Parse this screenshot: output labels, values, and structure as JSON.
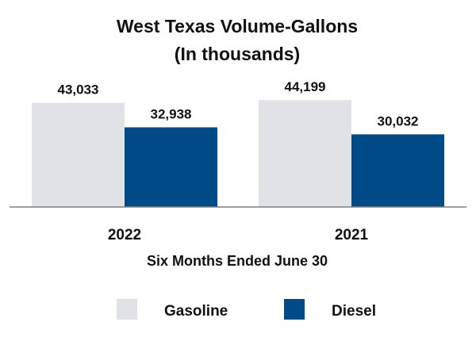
{
  "chart_data": {
    "type": "bar",
    "title": "West Texas Volume-Gallons",
    "subtitle": "(In thousands)",
    "xlabel": "Six Months Ended June 30",
    "ylabel": "",
    "categories": [
      "2022",
      "2021"
    ],
    "series": [
      {
        "name": "Gasoline",
        "color": "#e1e2e6",
        "values": [
          43033,
          44199
        ],
        "labels": [
          "43,033",
          "44,199"
        ]
      },
      {
        "name": "Diesel",
        "color": "#004b87",
        "values": [
          32938,
          30032
        ],
        "labels": [
          "32,938",
          "30,032"
        ]
      }
    ],
    "ylim": [
      0,
      45000
    ],
    "grid": false,
    "legend_position": "bottom"
  }
}
